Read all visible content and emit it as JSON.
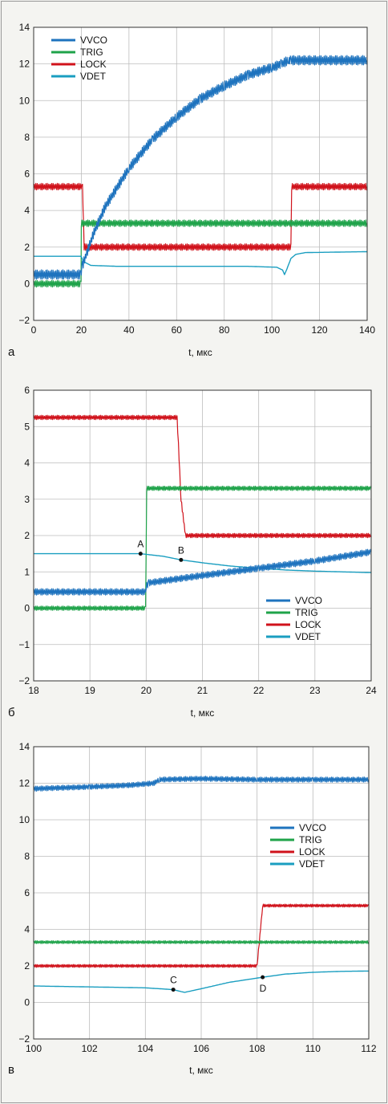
{
  "colors": {
    "VVCO": "#1e73be",
    "TRIG": "#1fa34a",
    "LOCK": "#d0121b",
    "VDET": "#1a9ec0",
    "grid": "#bdbdbd",
    "plot_bg": "#ffffff"
  },
  "chart_data": [
    {
      "type": "line",
      "panel_label": "а",
      "xlabel": "t, мкс",
      "ylabel": "",
      "xlim": [
        0,
        140
      ],
      "ylim": [
        -2,
        14
      ],
      "xticks": [
        0,
        20,
        40,
        60,
        80,
        100,
        120,
        140
      ],
      "yticks": [
        -2,
        0,
        2,
        4,
        6,
        8,
        10,
        12,
        14
      ],
      "grid": true,
      "legend": {
        "position": "top-left",
        "entries": [
          "VVCO",
          "TRIG",
          "LOCK",
          "VDET"
        ]
      },
      "series": [
        {
          "name": "VVCO",
          "x": [
            0,
            19.8,
            20,
            20.5,
            25,
            30,
            40,
            50,
            60,
            70,
            80,
            90,
            100,
            104,
            107,
            108,
            140
          ],
          "y": [
            0.5,
            0.5,
            0.7,
            1.0,
            2.7,
            4.2,
            6.3,
            7.9,
            9.1,
            10.1,
            10.8,
            11.4,
            11.8,
            12.0,
            12.2,
            12.2,
            12.2
          ]
        },
        {
          "name": "TRIG",
          "x": [
            0,
            19.9,
            20.0,
            140
          ],
          "y": [
            0.0,
            0.0,
            3.3,
            3.3
          ]
        },
        {
          "name": "LOCK",
          "x": [
            0,
            20.5,
            21.2,
            108.0,
            108.3,
            140
          ],
          "y": [
            5.3,
            5.3,
            2.0,
            2.0,
            5.3,
            5.3
          ]
        },
        {
          "name": "VDET",
          "x": [
            0,
            19.9,
            21,
            24,
            35,
            60,
            90,
            102,
            104.5,
            105.3,
            106.3,
            108,
            110,
            114,
            140
          ],
          "y": [
            1.5,
            1.5,
            1.2,
            1.0,
            0.95,
            0.95,
            0.95,
            0.9,
            0.75,
            0.5,
            0.8,
            1.38,
            1.6,
            1.7,
            1.75
          ]
        }
      ],
      "annotations": []
    },
    {
      "type": "line",
      "panel_label": "б",
      "xlabel": "t, мкс",
      "ylabel": "",
      "xlim": [
        18,
        24
      ],
      "ylim": [
        -2,
        6
      ],
      "xticks": [
        18,
        19,
        20,
        21,
        22,
        23,
        24
      ],
      "yticks": [
        -2,
        -1,
        0,
        1,
        2,
        3,
        4,
        5,
        6
      ],
      "grid": true,
      "legend": {
        "position": "bottom-right",
        "entries": [
          "VVCO",
          "TRIG",
          "LOCK",
          "VDET"
        ]
      },
      "series": [
        {
          "name": "VVCO",
          "x": [
            18,
            19.98,
            20.0,
            20.05,
            21,
            22,
            23,
            24
          ],
          "y": [
            0.45,
            0.45,
            0.6,
            0.7,
            0.9,
            1.1,
            1.3,
            1.55
          ]
        },
        {
          "name": "TRIG",
          "x": [
            18,
            19.99,
            20.01,
            24
          ],
          "y": [
            0.0,
            0.0,
            3.3,
            3.3
          ]
        },
        {
          "name": "LOCK",
          "x": [
            18,
            20.55,
            20.62,
            20.7,
            24
          ],
          "y": [
            5.25,
            5.25,
            3.0,
            2.0,
            2.0
          ]
        },
        {
          "name": "VDET",
          "x": [
            18,
            19.9,
            20.3,
            20.62,
            21,
            21.5,
            22,
            22.5,
            23,
            23.5,
            24
          ],
          "y": [
            1.5,
            1.5,
            1.43,
            1.33,
            1.25,
            1.16,
            1.1,
            1.05,
            1.02,
            1.0,
            0.98
          ]
        }
      ],
      "annotations": [
        {
          "text": "A",
          "x": 19.9,
          "y": 1.5
        },
        {
          "text": "B",
          "x": 20.62,
          "y": 1.33
        }
      ]
    },
    {
      "type": "line",
      "panel_label": "в",
      "xlabel": "t, мкс",
      "ylabel": "",
      "xlim": [
        100,
        112
      ],
      "ylim": [
        -2,
        14
      ],
      "xticks": [
        100,
        102,
        104,
        106,
        108,
        110,
        112
      ],
      "yticks": [
        -2,
        0,
        2,
        4,
        6,
        8,
        10,
        12,
        14
      ],
      "grid": true,
      "legend": {
        "position": "right",
        "entries": [
          "VVCO",
          "TRIG",
          "LOCK",
          "VDET"
        ]
      },
      "series": [
        {
          "name": "VVCO",
          "x": [
            100,
            102,
            103.5,
            104.3,
            104.5,
            106,
            108,
            110,
            112
          ],
          "y": [
            11.7,
            11.8,
            11.9,
            12.0,
            12.2,
            12.25,
            12.2,
            12.2,
            12.2
          ]
        },
        {
          "name": "TRIG",
          "x": [
            100,
            112
          ],
          "y": [
            3.3,
            3.3
          ]
        },
        {
          "name": "LOCK",
          "x": [
            100,
            108.0,
            108.2,
            112
          ],
          "y": [
            2.0,
            2.0,
            5.3,
            5.3
          ]
        },
        {
          "name": "VDET",
          "x": [
            100,
            102,
            104,
            105,
            105.4,
            106,
            107,
            108.2,
            109,
            110,
            111,
            112
          ],
          "y": [
            0.9,
            0.85,
            0.8,
            0.7,
            0.55,
            0.75,
            1.1,
            1.38,
            1.55,
            1.65,
            1.7,
            1.72
          ]
        }
      ],
      "annotations": [
        {
          "text": "C",
          "x": 105.0,
          "y": 0.7
        },
        {
          "text": "D",
          "x": 108.2,
          "y": 1.38
        }
      ]
    }
  ]
}
